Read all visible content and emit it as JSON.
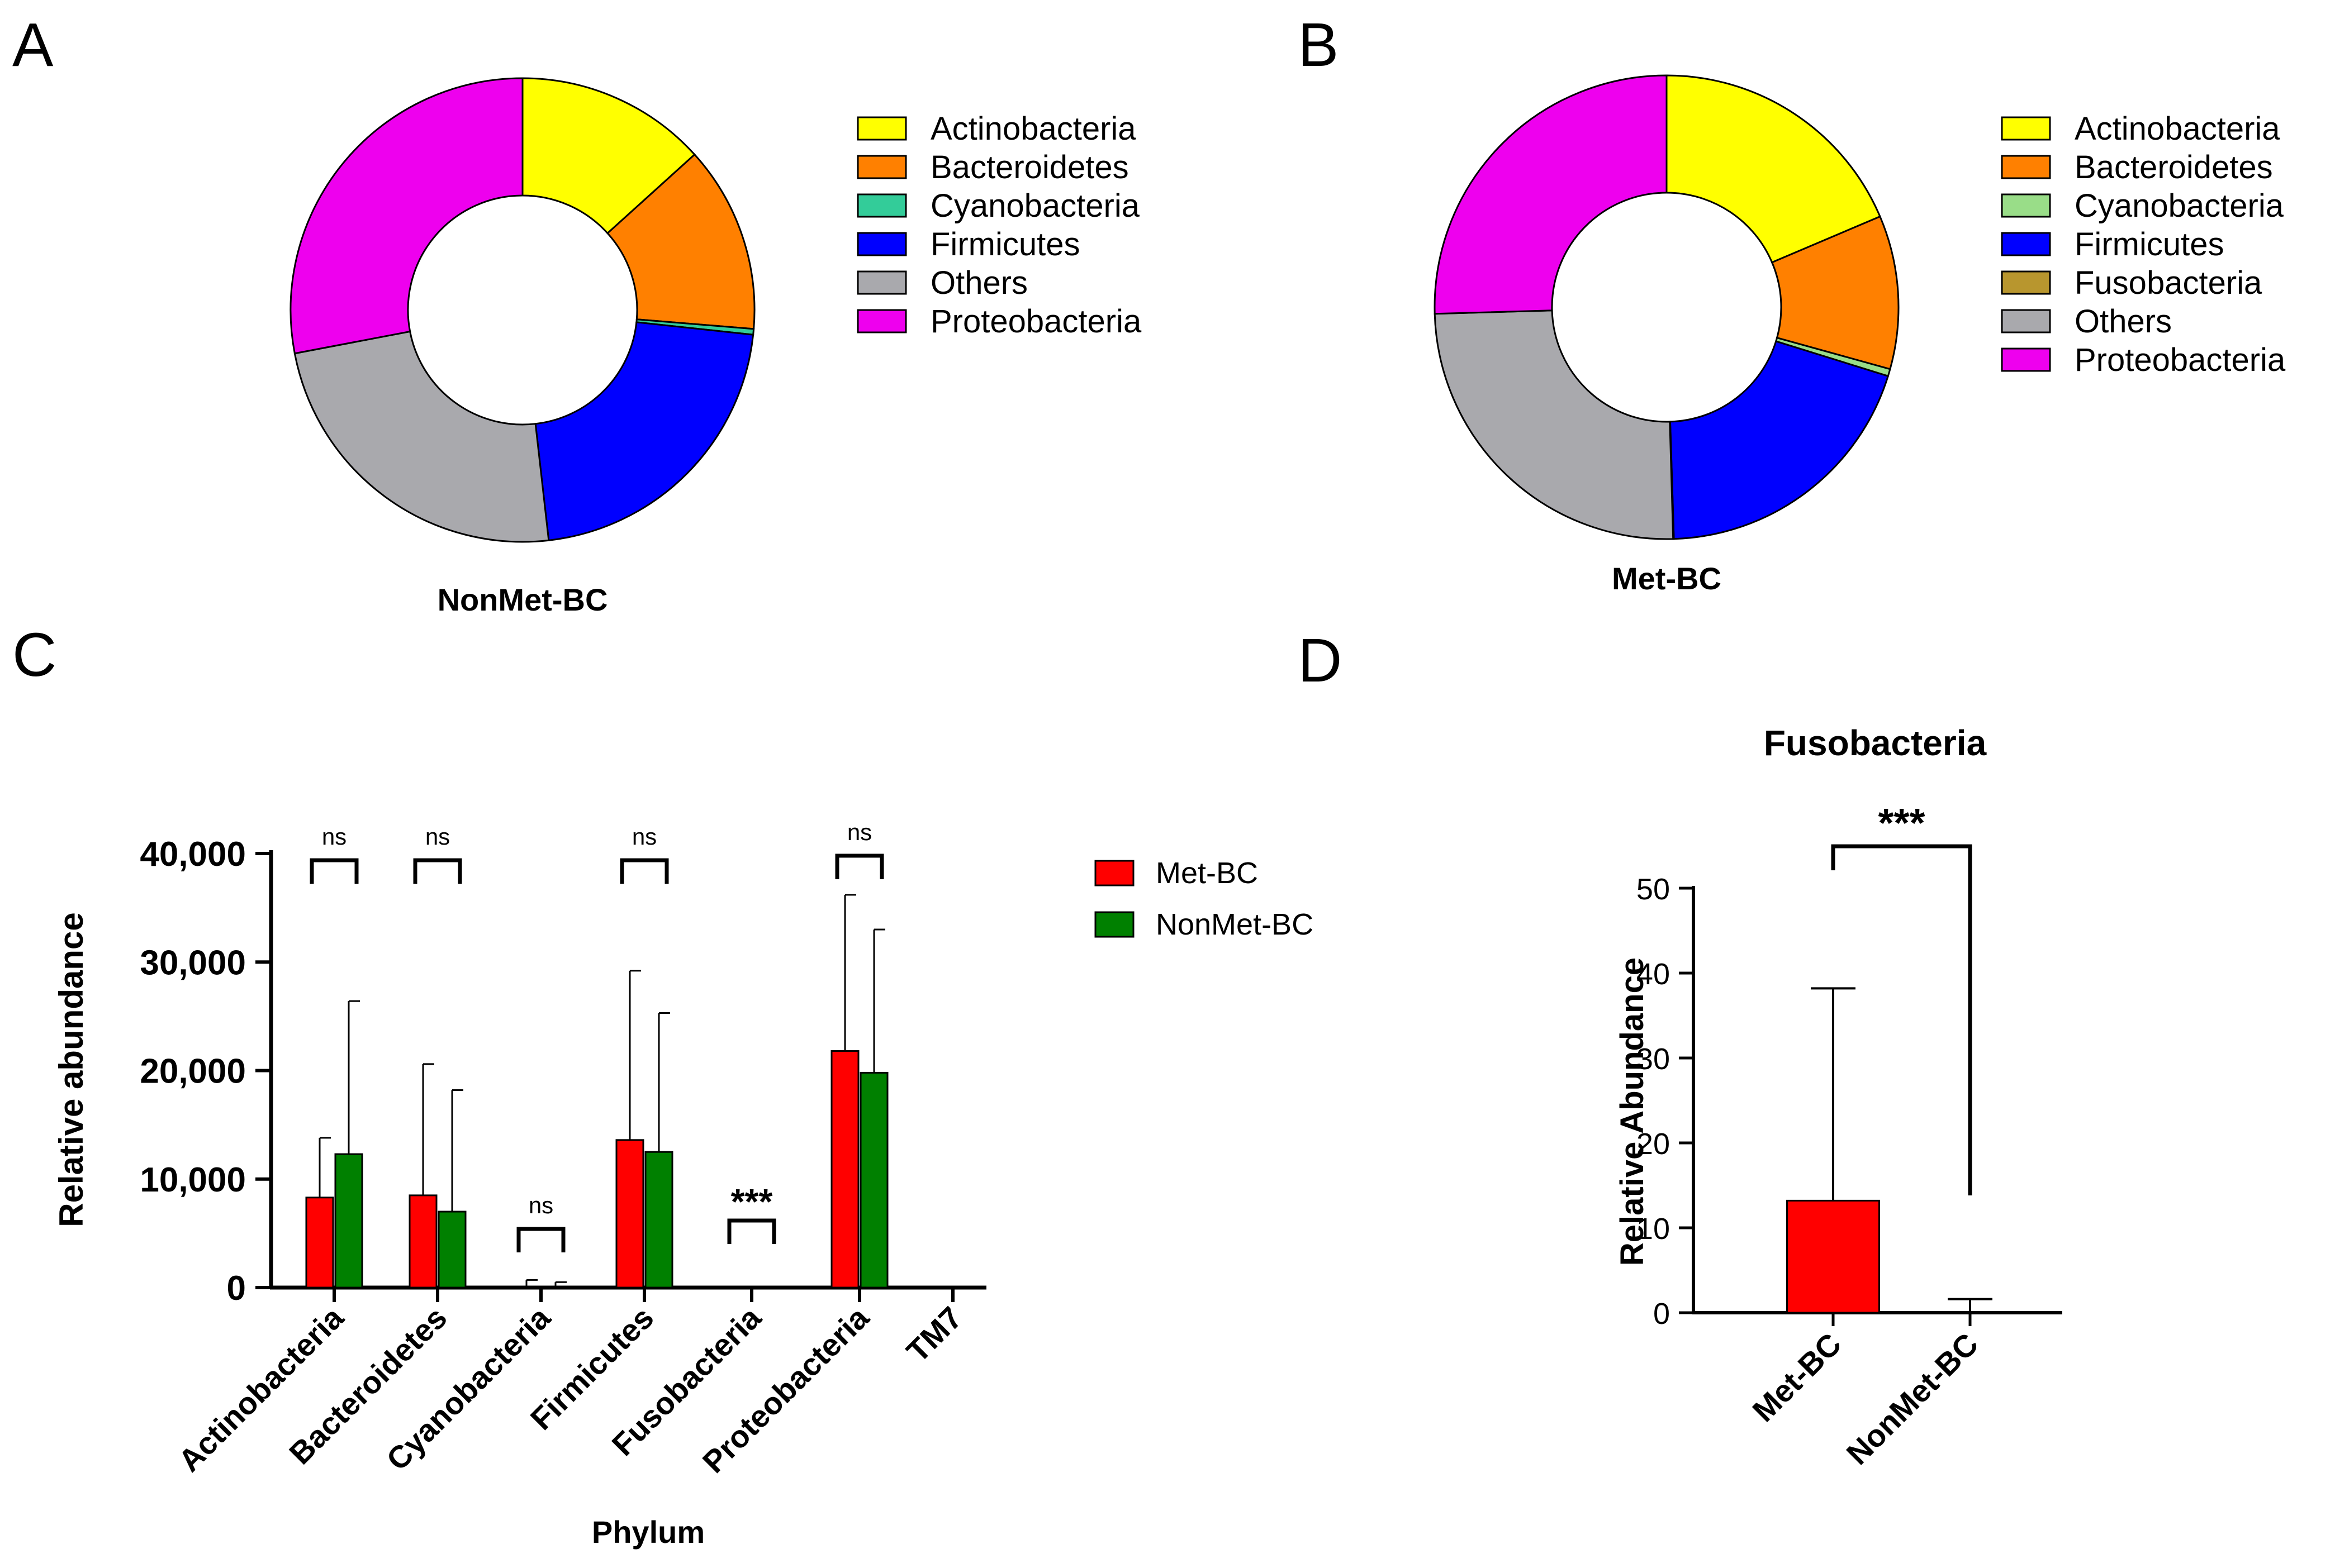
{
  "panels": {
    "a": {
      "letter": "A"
    },
    "b": {
      "letter": "B"
    },
    "c": {
      "letter": "C"
    },
    "d": {
      "letter": "D"
    }
  },
  "colors": {
    "Actinobacteria": "#ffff00",
    "Bacteroidetes": "#ff8000",
    "Cyanobacteria_A": "#33cc99",
    "Cyanobacteria_B": "#99dd88",
    "Firmicutes": "#0000ff",
    "Fusobacteria": "#b8962e",
    "Others": "#a9a9ad",
    "Proteobacteria": "#ee00ee",
    "Met-BC": "#ff0000",
    "NonMet-BC": "#008000"
  },
  "chart_data": [
    {
      "id": "a",
      "type": "pie",
      "donut": true,
      "title": "NonMet-BC",
      "labels": [
        "Actinobacteria",
        "Bacteroidetes",
        "Cyanobacteria",
        "Firmicutes",
        "Others",
        "Proteobacteria"
      ],
      "values": [
        13.3,
        13.0,
        0.4,
        21.5,
        23.8,
        28.0
      ],
      "legend": [
        "Actinobacteria",
        "Bacteroidetes",
        "Cyanobacteria",
        "Firmicutes",
        "Others",
        "Proteobacteria"
      ],
      "legend_position": "right"
    },
    {
      "id": "b",
      "type": "pie",
      "donut": true,
      "title": "Met-BC",
      "labels": [
        "Actinobacteria",
        "Bacteroidetes",
        "Cyanobacteria",
        "Firmicutes",
        "Fusobacteria",
        "Others",
        "Proteobacteria"
      ],
      "values": [
        18.6,
        10.7,
        0.5,
        19.7,
        0.05,
        25.0,
        25.45
      ],
      "legend": [
        "Actinobacteria",
        "Bacteroidetes",
        "Cyanobacteria",
        "Firmicutes",
        "Fusobacteria",
        "Others",
        "Proteobacteria"
      ],
      "legend_position": "right"
    },
    {
      "id": "c",
      "type": "bar",
      "title": "",
      "xlabel": "Phylum",
      "ylabel": "Relative abundance",
      "ylim": [
        0,
        40000
      ],
      "yticks": [
        0,
        10000,
        20000,
        30000,
        40000
      ],
      "ytick_labels": [
        "0",
        "10,000",
        "20,000",
        "30,000",
        "40,000"
      ],
      "categories": [
        "Actinobacteria",
        "Bacteroidetes",
        "Cyanobacteria",
        "Firmicutes",
        "Fusobacteria",
        "Proteobacteria",
        "TM7"
      ],
      "series": [
        {
          "name": "Met-BC",
          "values": [
            8300,
            8500,
            100,
            13600,
            5,
            21800,
            0
          ],
          "error_upper": [
            13800,
            20600,
            700,
            29200,
            20,
            36200,
            0
          ]
        },
        {
          "name": "NonMet-BC",
          "values": [
            12300,
            7000,
            100,
            12500,
            0,
            19800,
            0
          ],
          "error_upper": [
            26400,
            18200,
            500,
            25300,
            0,
            33000,
            0
          ]
        }
      ],
      "significance": [
        "ns",
        "ns",
        "ns",
        "ns",
        "***",
        "ns",
        ""
      ],
      "legend": [
        "Met-BC",
        "NonMet-BC"
      ],
      "legend_position": "top-right",
      "grid": false
    },
    {
      "id": "d",
      "type": "bar",
      "title": "Fusobacteria",
      "xlabel": "",
      "ylabel": "Relative Abundance",
      "ylim": [
        0,
        50
      ],
      "yticks": [
        0,
        10,
        20,
        30,
        40,
        50
      ],
      "ytick_labels": [
        "0",
        "10",
        "20",
        "30",
        "40",
        "50"
      ],
      "categories": [
        "Met-BC",
        "NonMet-BC"
      ],
      "values": [
        13.2,
        0
      ],
      "error_upper": [
        38.2,
        1.6
      ],
      "significance": "***",
      "grid": false
    }
  ]
}
